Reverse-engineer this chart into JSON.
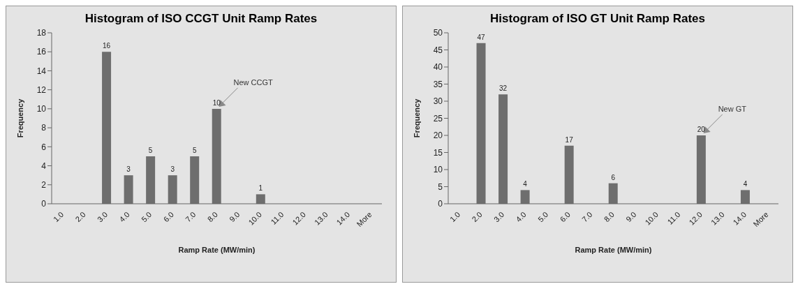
{
  "chart_data": [
    {
      "type": "bar",
      "title": "Histogram of ISO CCGT Unit Ramp Rates",
      "xlabel": "Ramp Rate  (MW/min)",
      "ylabel": "Frequency",
      "categories": [
        "1.0",
        "2.0",
        "3.0",
        "4.0",
        "5.0",
        "6.0",
        "7.0",
        "8.0",
        "9.0",
        "10.0",
        "11.0",
        "12.0",
        "13.0",
        "14.0",
        "More"
      ],
      "values": [
        0,
        0,
        16,
        3,
        5,
        3,
        5,
        10,
        0,
        1,
        0,
        0,
        0,
        0,
        0
      ],
      "value_labels": [
        null,
        null,
        "16",
        "3",
        "5",
        "3",
        "5",
        "10",
        null,
        "1",
        null,
        null,
        null,
        null,
        null
      ],
      "color": "#6e6e6e",
      "ylim": [
        0,
        18
      ],
      "yticks": [
        0,
        2,
        4,
        6,
        8,
        10,
        12,
        14,
        16,
        18
      ],
      "grid": false,
      "legend": false,
      "annotations": [
        {
          "text": "New CCGT",
          "x": "8.0",
          "y": 10
        }
      ]
    },
    {
      "type": "bar",
      "title": "Histogram of ISO GT Unit Ramp Rates",
      "xlabel": "Ramp Rate  (MW/min)",
      "ylabel": "Frequency",
      "categories": [
        "1.0",
        "2.0",
        "3.0",
        "4.0",
        "5.0",
        "6.0",
        "7.0",
        "8.0",
        "9.0",
        "10.0",
        "11.0",
        "12.0",
        "13.0",
        "14.0",
        "More"
      ],
      "values": [
        0,
        47,
        32,
        4,
        0,
        17,
        0,
        6,
        0,
        0,
        0,
        20,
        0,
        4,
        0
      ],
      "value_labels": [
        null,
        "47",
        "32",
        "4",
        null,
        "17",
        null,
        "6",
        null,
        null,
        null,
        "20",
        null,
        "4",
        null
      ],
      "color": "#6e6e6e",
      "ylim": [
        0,
        50
      ],
      "yticks": [
        0,
        5,
        10,
        15,
        20,
        25,
        30,
        35,
        40,
        45,
        50
      ],
      "grid": false,
      "legend": false,
      "annotations": [
        {
          "text": "New GT",
          "x": "12.0",
          "y": 20
        }
      ]
    }
  ]
}
